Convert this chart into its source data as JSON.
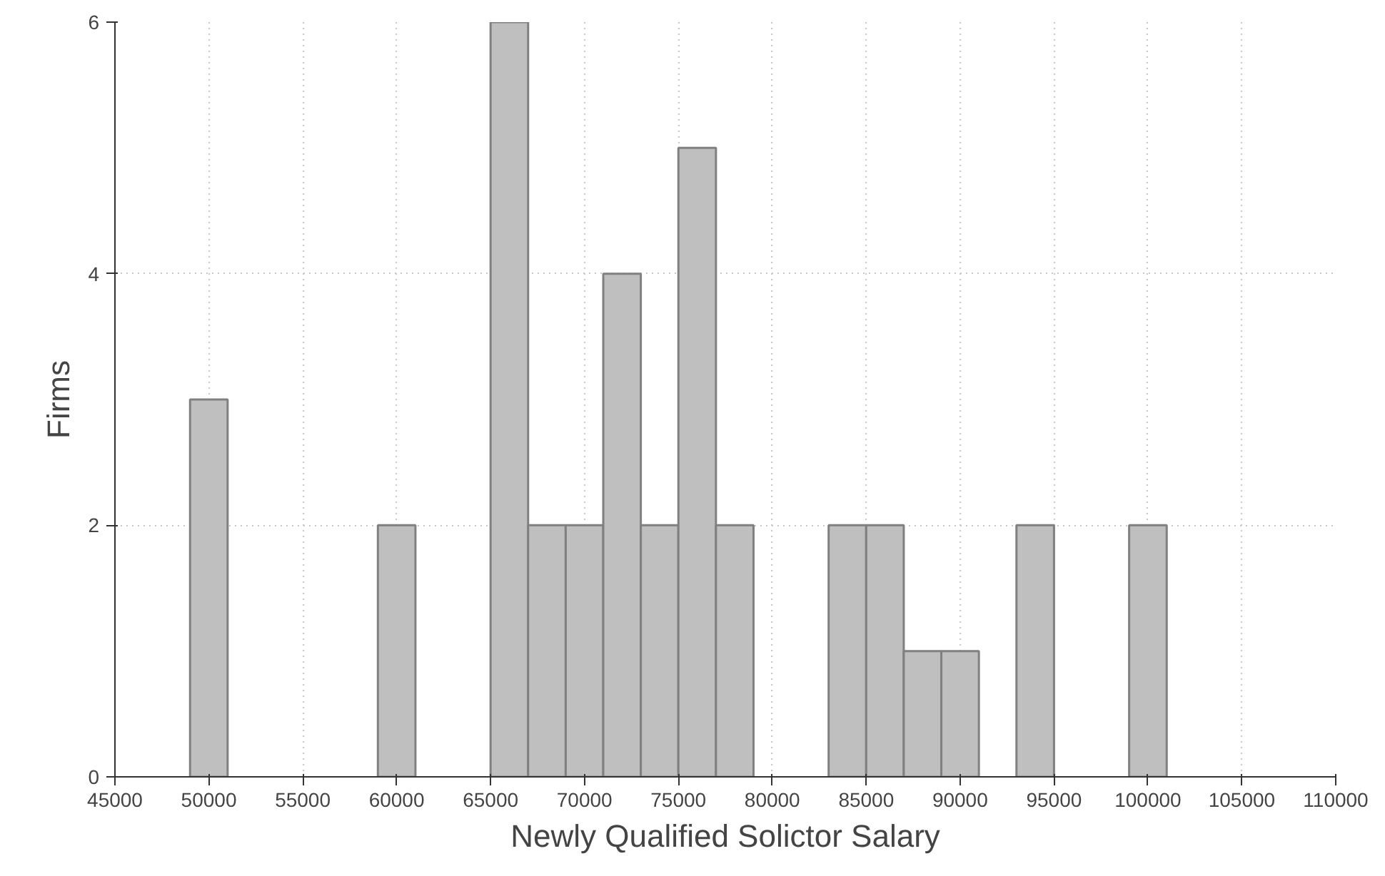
{
  "chart_data": {
    "type": "histogram",
    "xlabel": "Newly Qualified Solictor Salary",
    "ylabel": "Firms",
    "bins": [
      49000,
      51000,
      53000,
      55000,
      57000,
      59000,
      61000,
      63000,
      65000,
      67000,
      69000,
      71000,
      73000,
      75000,
      77000,
      79000,
      81000,
      83000,
      85000,
      87000,
      89000,
      91000,
      93000,
      95000,
      97000,
      99000,
      101000
    ],
    "values": [
      3,
      0,
      0,
      0,
      0,
      2,
      0,
      0,
      6,
      2,
      2,
      4,
      2,
      5,
      2,
      0,
      0,
      2,
      2,
      1,
      1,
      0,
      2,
      0,
      0,
      2
    ],
    "color": "#bfbfbf",
    "xlim": [
      45000,
      110000
    ],
    "ylim": [
      0,
      6
    ],
    "xticks": [
      45000,
      50000,
      55000,
      60000,
      65000,
      70000,
      75000,
      80000,
      85000,
      90000,
      95000,
      100000,
      105000,
      110000
    ],
    "yticks": [
      0,
      2,
      4,
      6
    ],
    "grid": true
  }
}
